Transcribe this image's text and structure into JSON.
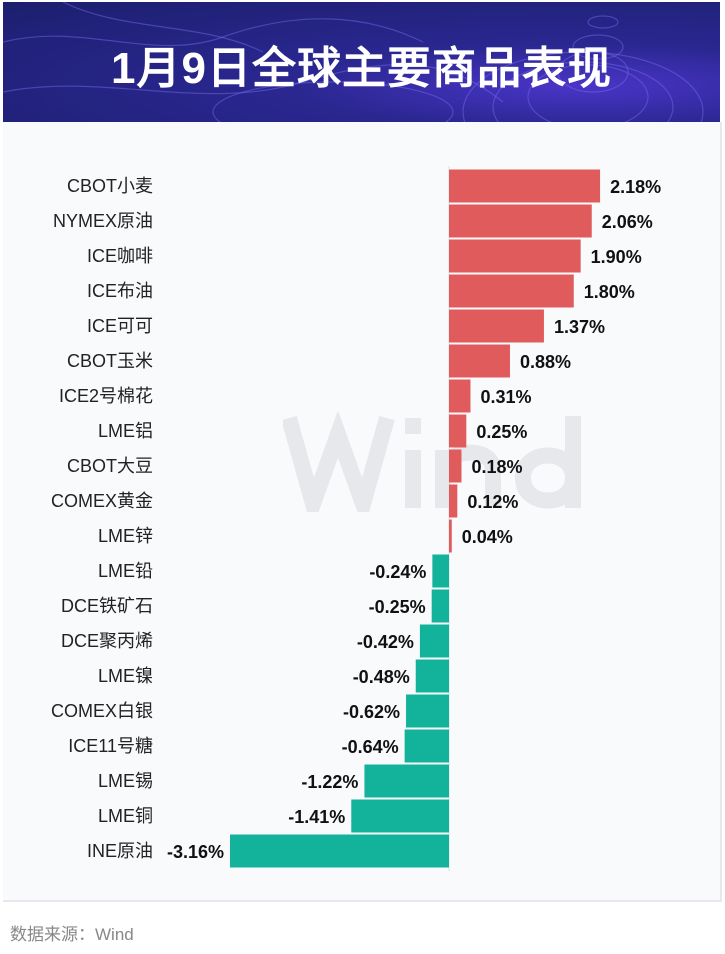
{
  "header": {
    "title": "1月9日全球主要商品表现"
  },
  "watermark": "Wind",
  "footer": {
    "source": "数据来源：Wind"
  },
  "colors": {
    "positive": "#e05c5c",
    "negative": "#13b29a"
  },
  "chart_data": {
    "type": "bar",
    "orientation": "horizontal",
    "title": "1月9日全球主要商品表现",
    "unit": "%",
    "categories": [
      "CBOT小麦",
      "NYMEX原油",
      "ICE咖啡",
      "ICE布油",
      "ICE可可",
      "CBOT玉米",
      "ICE2号棉花",
      "LME铝",
      "CBOT大豆",
      "COMEX黄金",
      "LME锌",
      "LME铅",
      "DCE铁矿石",
      "DCE聚丙烯",
      "LME镍",
      "COMEX白银",
      "ICE11号糖",
      "LME锡",
      "LME铜",
      "INE原油"
    ],
    "values": [
      2.18,
      2.06,
      1.9,
      1.8,
      1.37,
      0.88,
      0.31,
      0.25,
      0.18,
      0.12,
      0.04,
      -0.24,
      -0.25,
      -0.42,
      -0.48,
      -0.62,
      -0.64,
      -1.22,
      -1.41,
      -3.16
    ],
    "labels": [
      "2.18%",
      "2.06%",
      "1.90%",
      "1.80%",
      "1.37%",
      "0.88%",
      "0.31%",
      "0.25%",
      "0.18%",
      "0.12%",
      "0.04%",
      "-0.24%",
      "-0.25%",
      "-0.42%",
      "-0.48%",
      "-0.62%",
      "-0.64%",
      "-1.22%",
      "-1.41%",
      "-3.16%"
    ]
  }
}
